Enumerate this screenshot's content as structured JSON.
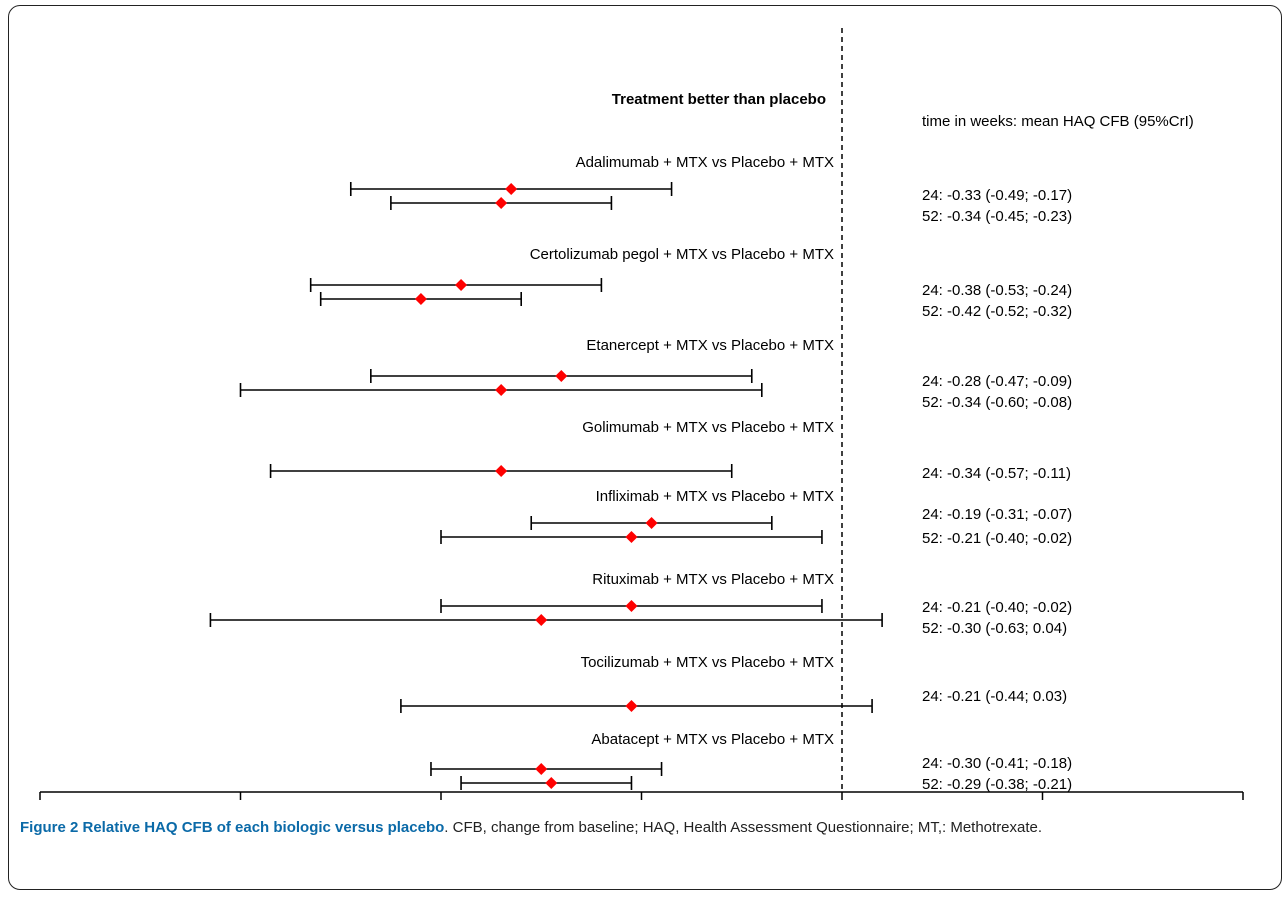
{
  "chart_data": {
    "type": "forest",
    "annotation_left": "Treatment better than placebo",
    "right_column_header": "time in weeks: mean HAQ CFB (95%CrI)",
    "xlim": [
      -0.8,
      0.4
    ],
    "reference_line": 0.0,
    "x_ticks": [
      "-0.8",
      "-0.6",
      "-0.4",
      "-0.2",
      "0.0",
      "0.2",
      "0.4"
    ],
    "comparisons": [
      {
        "label": "Adalimumab + MTX vs Placebo + MTX",
        "estimates": [
          {
            "text": "24: -0.33 (-0.49; -0.17)",
            "week": 24,
            "mean": -0.33,
            "lower": -0.49,
            "upper": -0.17
          },
          {
            "text": "52: -0.34 (-0.45; -0.23)",
            "week": 52,
            "mean": -0.34,
            "lower": -0.45,
            "upper": -0.23
          }
        ]
      },
      {
        "label": "Certolizumab pegol + MTX vs Placebo + MTX",
        "estimates": [
          {
            "text": "24: -0.38 (-0.53; -0.24)",
            "week": 24,
            "mean": -0.38,
            "lower": -0.53,
            "upper": -0.24
          },
          {
            "text": "52: -0.42 (-0.52; -0.32)",
            "week": 52,
            "mean": -0.42,
            "lower": -0.52,
            "upper": -0.32
          }
        ]
      },
      {
        "label": "Etanercept + MTX vs Placebo + MTX",
        "estimates": [
          {
            "text": "24: -0.28 (-0.47; -0.09)",
            "week": 24,
            "mean": -0.28,
            "lower": -0.47,
            "upper": -0.09
          },
          {
            "text": "52: -0.34 (-0.60; -0.08)",
            "week": 52,
            "mean": -0.34,
            "lower": -0.6,
            "upper": -0.08
          }
        ]
      },
      {
        "label": "Golimumab + MTX vs Placebo + MTX",
        "estimates": [
          {
            "text": "24: -0.34 (-0.57; -0.11)",
            "week": 24,
            "mean": -0.34,
            "lower": -0.57,
            "upper": -0.11
          }
        ]
      },
      {
        "label": "Infliximab + MTX vs Placebo + MTX",
        "estimates": [
          {
            "text": "24: -0.19 (-0.31; -0.07)",
            "week": 24,
            "mean": -0.19,
            "lower": -0.31,
            "upper": -0.07
          },
          {
            "text": "52: -0.21 (-0.40; -0.02)",
            "week": 52,
            "mean": -0.21,
            "lower": -0.4,
            "upper": -0.02
          }
        ]
      },
      {
        "label": "Rituximab + MTX vs Placebo + MTX",
        "estimates": [
          {
            "text": "24: -0.21 (-0.40; -0.02)",
            "week": 24,
            "mean": -0.21,
            "lower": -0.4,
            "upper": -0.02
          },
          {
            "text": "52: -0.30 (-0.63; 0.04)",
            "week": 52,
            "mean": -0.3,
            "lower": -0.63,
            "upper": 0.04
          }
        ]
      },
      {
        "label": "Tocilizumab + MTX vs Placebo + MTX",
        "estimates": [
          {
            "text": "24: -0.21 (-0.44; 0.03)",
            "week": 24,
            "mean": -0.21,
            "lower": -0.44,
            "upper": 0.03
          }
        ]
      },
      {
        "label": "Abatacept + MTX vs Placebo + MTX",
        "estimates": [
          {
            "text": "24: -0.30 (-0.41; -0.18)",
            "week": 24,
            "mean": -0.3,
            "lower": -0.41,
            "upper": -0.18
          },
          {
            "text": "52: -0.29 (-0.38; -0.21)",
            "week": 52,
            "mean": -0.29,
            "lower": -0.38,
            "upper": -0.21
          }
        ]
      }
    ],
    "colors": {
      "marker": "#ff0000",
      "line": "#000000"
    }
  },
  "caption": {
    "lead": "Figure 2 Relative HAQ CFB of each biologic versus placebo",
    "rest": ". CFB, change from baseline; HAQ, Health Assessment Questionnaire; MT,: Methotrexate."
  }
}
